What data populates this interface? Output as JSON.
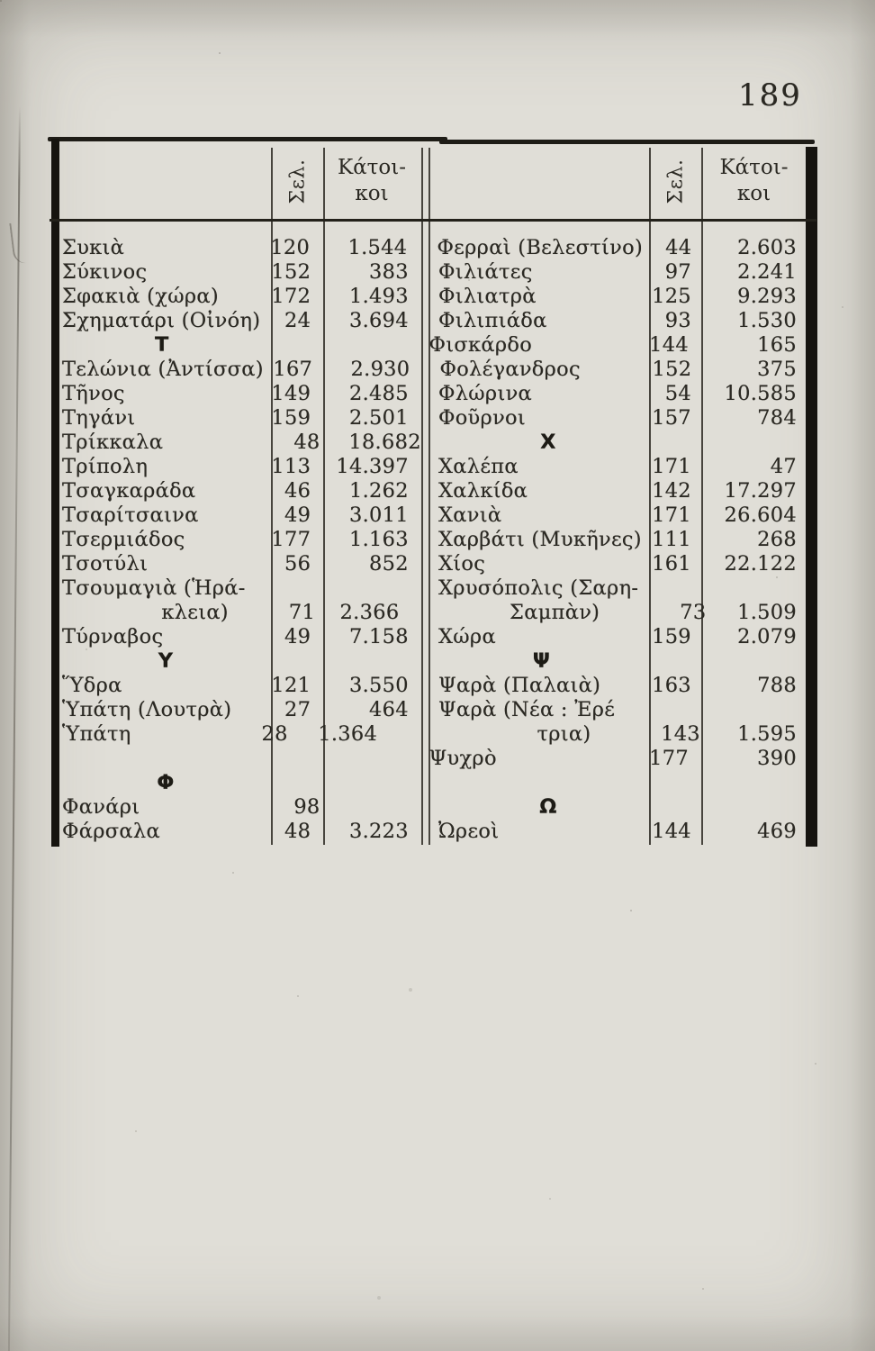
{
  "page_number": "189",
  "colors": {
    "paper": "#e0ded7",
    "ink": "#2b2923",
    "rule": "#1e1c16"
  },
  "table": {
    "header": {
      "sel": "Σελ.",
      "inhabitants_line1": "Κάτοι-",
      "inhabitants_line2": "κοι"
    },
    "left_rows": [
      {
        "type": "entry",
        "name": "Συκιὰ",
        "page": "120",
        "pop": "1.544"
      },
      {
        "type": "entry",
        "name": "Σύκινος",
        "page": "152",
        "pop": "383"
      },
      {
        "type": "entry",
        "name": "Σφακιὰ (χώρα)",
        "page": "172",
        "pop": "1.493"
      },
      {
        "type": "entry",
        "name": "Σχηματάρι (Οἰνόη)",
        "page": "24",
        "pop": "3.694"
      },
      {
        "type": "section",
        "letter": "Τ"
      },
      {
        "type": "entry",
        "name": "Τελώνια (Ἀντίσσα)",
        "page": "167",
        "pop": "2.930"
      },
      {
        "type": "entry",
        "name": "Τῆνος",
        "page": "149",
        "pop": "2.485"
      },
      {
        "type": "entry",
        "name": "Τηγάνι",
        "page": "159",
        "pop": "2.501"
      },
      {
        "type": "entry",
        "name": "Τρίκκαλα",
        "page": "48",
        "pop": "18.682"
      },
      {
        "type": "entry",
        "name": "Τρίπολη",
        "page": "113",
        "pop": "14.397"
      },
      {
        "type": "entry",
        "name": "Τσαγκαράδα",
        "page": "46",
        "pop": "1.262"
      },
      {
        "type": "entry",
        "name": "Τσαρίτσαινα",
        "page": "49",
        "pop": "3.011"
      },
      {
        "type": "entry",
        "name": "Τσερμιάδος",
        "page": "177",
        "pop": "1.163"
      },
      {
        "type": "entry",
        "name": "Τσοτύλι",
        "page": "56",
        "pop": "852"
      },
      {
        "type": "entry",
        "name": "Τσουμαγιὰ (Ἡρά-",
        "page": "",
        "pop": ""
      },
      {
        "type": "continuation",
        "name": "κλεια)",
        "page": "71",
        "pop": "2.366"
      },
      {
        "type": "entry",
        "name": "Τύρναβος",
        "page": "49",
        "pop": "7.158"
      },
      {
        "type": "section",
        "letter": "Υ"
      },
      {
        "type": "entry",
        "name": "Ὕδρα",
        "page": "121",
        "pop": "3.550"
      },
      {
        "type": "entry",
        "name": "Ὑπάτη (Λουτρὰ)",
        "page": "27",
        "pop": "464"
      },
      {
        "type": "entry",
        "name": "Ὑπάτη",
        "page": "28",
        "pop": "1.364"
      },
      {
        "type": "empty"
      },
      {
        "type": "section",
        "letter": "Φ"
      },
      {
        "type": "entry",
        "name": "Φανάρι",
        "page": "98",
        "pop": ""
      },
      {
        "type": "entry",
        "name": "Φάρσαλα",
        "page": "48",
        "pop": "3.223"
      }
    ],
    "right_rows": [
      {
        "type": "entry",
        "name": "Φερραὶ (Βελεστίνο)",
        "page": "44",
        "pop": "2.603"
      },
      {
        "type": "entry",
        "name": "Φιλιάτες",
        "page": "97",
        "pop": "2.241"
      },
      {
        "type": "entry",
        "name": "Φιλιατρὰ",
        "page": "125",
        "pop": "9.293"
      },
      {
        "type": "entry",
        "name": "Φιλιπιάδα",
        "page": "93",
        "pop": "1.530"
      },
      {
        "type": "entry",
        "name": "Φισκάρδο",
        "page": "144",
        "pop": "165"
      },
      {
        "type": "entry",
        "name": "Φολέγανδρος",
        "page": "152",
        "pop": "375"
      },
      {
        "type": "entry",
        "name": "Φλώρινα",
        "page": "54",
        "pop": "10.585"
      },
      {
        "type": "entry",
        "name": "Φοῦρνοι",
        "page": "157",
        "pop": "784"
      },
      {
        "type": "section",
        "letter": "Χ"
      },
      {
        "type": "entry",
        "name": "Χαλέπα",
        "page": "171",
        "pop": "47"
      },
      {
        "type": "entry",
        "name": "Χαλκίδα",
        "page": "142",
        "pop": "17.297"
      },
      {
        "type": "entry",
        "name": "Χανιὰ",
        "page": "171",
        "pop": "26.604"
      },
      {
        "type": "entry",
        "name": "Χαρβάτι (Μυκῆνες)",
        "page": "111",
        "pop": "268"
      },
      {
        "type": "entry",
        "name": "Χίος",
        "page": "161",
        "pop": "22.122"
      },
      {
        "type": "entry",
        "name": "Χρυσόπολις (Σαρη-",
        "page": "",
        "pop": ""
      },
      {
        "type": "continuation",
        "name": "Σαμπὰν)",
        "page": "73",
        "pop": "1.509"
      },
      {
        "type": "entry",
        "name": "Χώρα",
        "page": "159",
        "pop": "2.079"
      },
      {
        "type": "section",
        "letter": "Ψ"
      },
      {
        "type": "entry",
        "name": "Ψαρὰ (Παλαιὰ)",
        "page": "163",
        "pop": "788"
      },
      {
        "type": "entry",
        "name": "Ψαρὰ (Νέα : Ἐρέ",
        "page": "",
        "pop": ""
      },
      {
        "type": "continuation",
        "name": "τρια)",
        "page": "143",
        "pop": "1.595"
      },
      {
        "type": "entry",
        "name": "Ψυχρὸ",
        "page": "177",
        "pop": "390"
      },
      {
        "type": "empty"
      },
      {
        "type": "section",
        "letter": "Ω"
      },
      {
        "type": "entry",
        "name": "Ὠρεοὶ",
        "page": "144",
        "pop": "469"
      }
    ]
  }
}
